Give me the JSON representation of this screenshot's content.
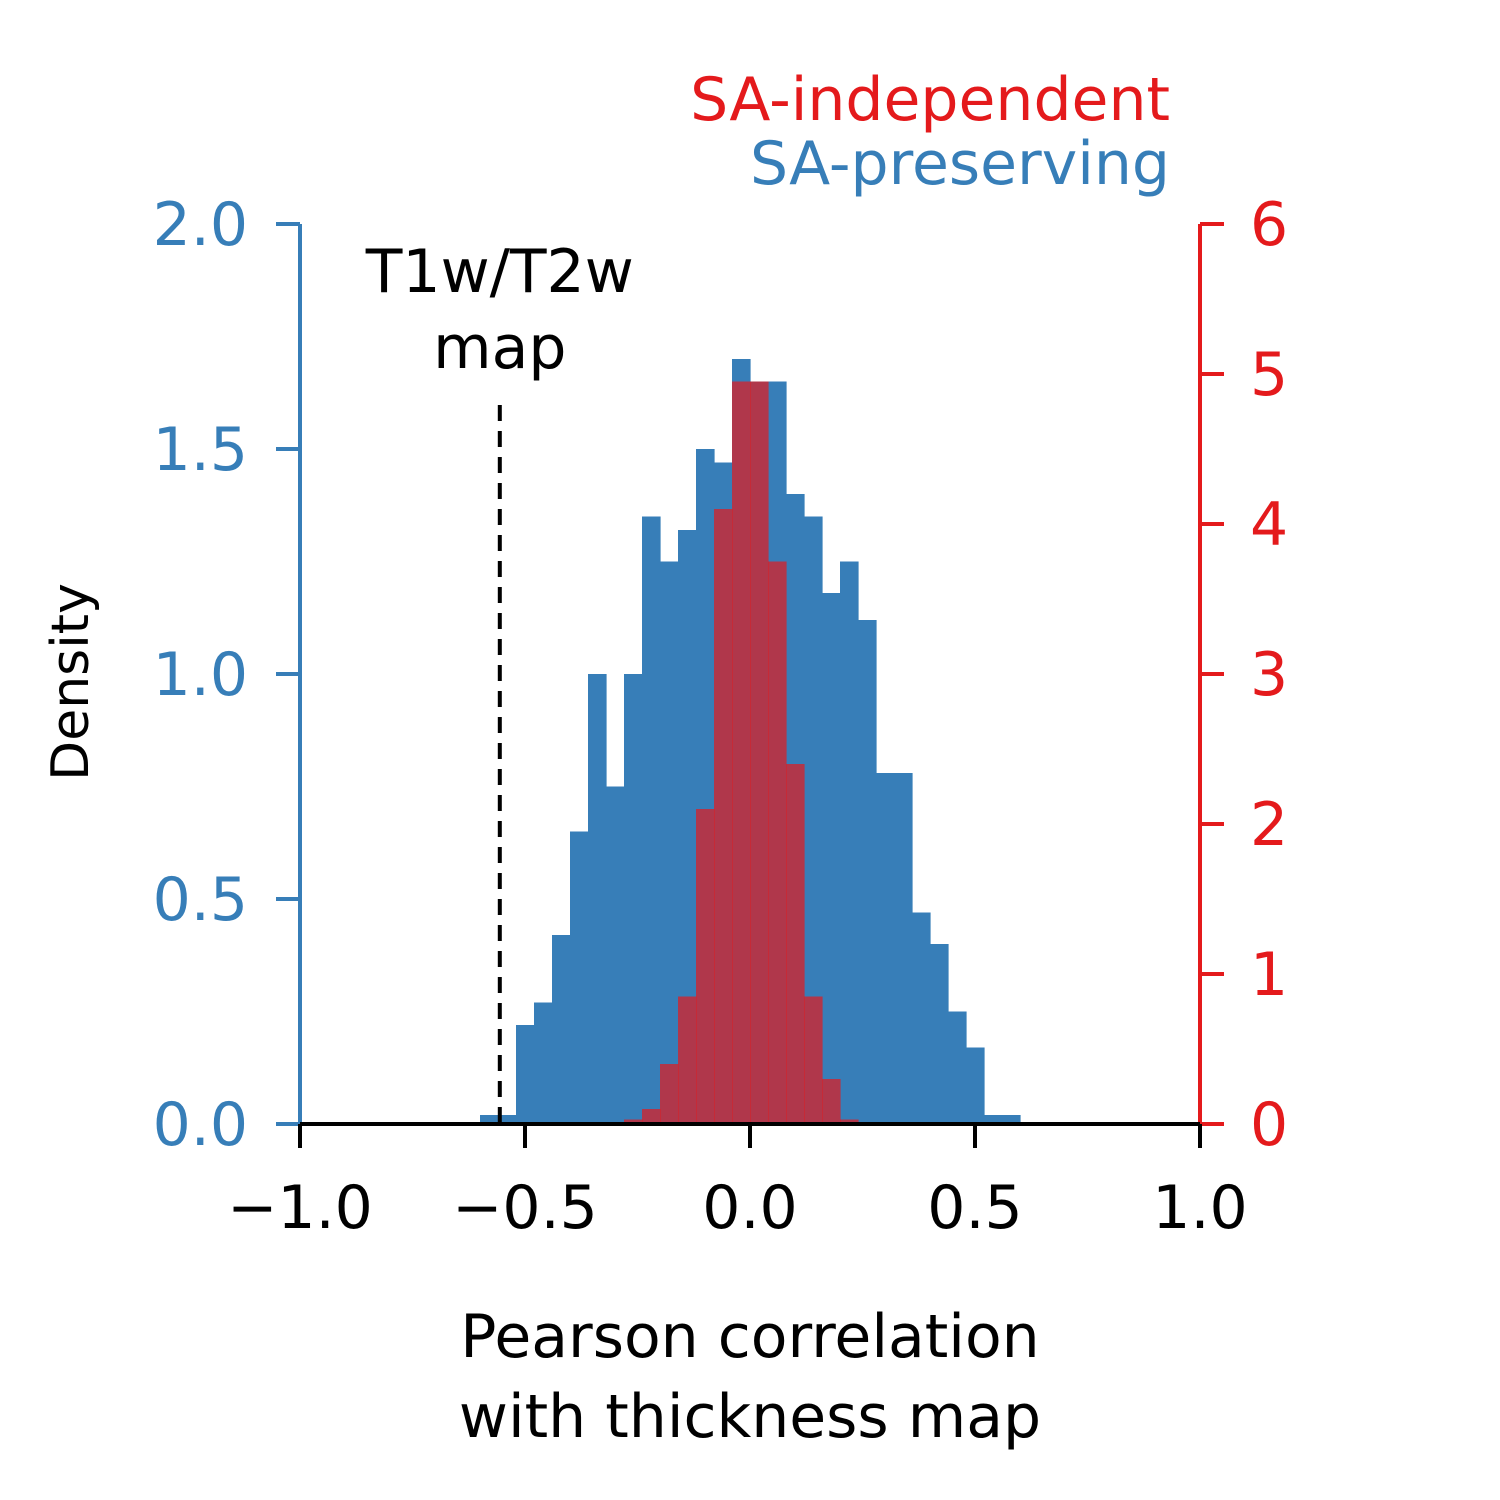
{
  "chart_data": {
    "type": "bar",
    "subtype": "overlaid-histogram",
    "title": "",
    "xlabel": [
      "Pearson correlation",
      "with thickness map"
    ],
    "xlim": [
      -1.0,
      1.0
    ],
    "xticks": [
      "−1.0",
      "−0.5",
      "0.0",
      "0.5",
      "1.0"
    ],
    "xtick_values": [
      -1.0,
      -0.5,
      0.0,
      0.5,
      1.0
    ],
    "left_axis": {
      "label": "Density",
      "ylim": [
        0,
        2.0
      ],
      "ticks": [
        "0.0",
        "0.5",
        "1.0",
        "1.5",
        "2.0"
      ],
      "tick_values": [
        0,
        0.5,
        1.0,
        1.5,
        2.0
      ],
      "color": "#377eb8"
    },
    "right_axis": {
      "label": "",
      "ylim": [
        0,
        6
      ],
      "ticks": [
        "0",
        "1",
        "2",
        "3",
        "4",
        "5",
        "6"
      ],
      "tick_values": [
        0,
        1,
        2,
        3,
        4,
        5,
        6
      ],
      "color": "#e41a1c"
    },
    "legend": {
      "placement": "top-right",
      "entries": [
        {
          "label": "SA-independent",
          "color": "#e41a1c"
        },
        {
          "label": "SA-preserving",
          "color": "#377eb8"
        }
      ]
    },
    "series": [
      {
        "name": "SA-preserving",
        "axis": "left",
        "color": "#377eb8",
        "bin_start": -0.6,
        "bin_width": 0.04,
        "values": [
          0.02,
          0.02,
          0.22,
          0.27,
          0.42,
          0.65,
          1.0,
          0.75,
          1.0,
          1.35,
          1.25,
          1.32,
          1.5,
          1.47,
          1.7,
          1.65,
          1.65,
          1.4,
          1.35,
          1.18,
          1.25,
          1.12,
          0.78,
          0.78,
          0.47,
          0.4,
          0.25,
          0.17,
          0.02,
          0.02
        ]
      },
      {
        "name": "SA-independent",
        "axis": "right",
        "color": "#e41a1c",
        "alpha": 0.7,
        "bin_start": -0.28,
        "bin_width": 0.04,
        "values": [
          0.03,
          0.1,
          0.4,
          0.85,
          2.1,
          4.1,
          4.95,
          4.95,
          3.75,
          2.4,
          0.85,
          0.3,
          0.03
        ]
      }
    ],
    "annotations": [
      {
        "text": [
          "T1w/T2w",
          "map"
        ],
        "x": -0.556,
        "style": "dashed-vertical-line",
        "color": "#000000"
      }
    ]
  }
}
